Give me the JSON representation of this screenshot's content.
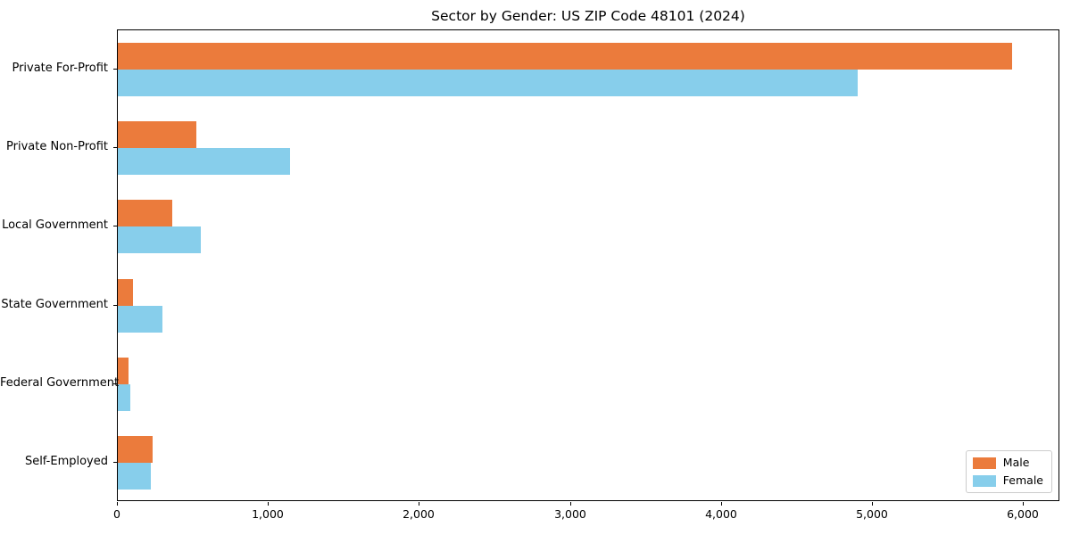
{
  "chart_data": {
    "type": "bar",
    "orientation": "horizontal",
    "title": "Sector by Gender: US ZIP Code 48101 (2024)",
    "categories": [
      "Private For-Profit",
      "Private Non-Profit",
      "Local Government",
      "State Government",
      "Federal Government",
      "Self-Employed"
    ],
    "series": [
      {
        "name": "Male",
        "color": "#eb7b3c",
        "values": [
          5930,
          520,
          360,
          100,
          70,
          230
        ]
      },
      {
        "name": "Female",
        "color": "#87ceeb",
        "values": [
          4910,
          1140,
          550,
          295,
          80,
          220
        ]
      }
    ],
    "xlabel": "",
    "ylabel": "",
    "xlim": [
      0,
      6240
    ],
    "xticks": [
      0,
      1000,
      2000,
      3000,
      4000,
      5000,
      6000
    ],
    "xtick_labels": [
      "0",
      "1,000",
      "2,000",
      "3,000",
      "4,000",
      "5,000",
      "6,000"
    ],
    "grid": false,
    "legend": {
      "position": "lower right",
      "entries": [
        "Male",
        "Female"
      ]
    }
  }
}
